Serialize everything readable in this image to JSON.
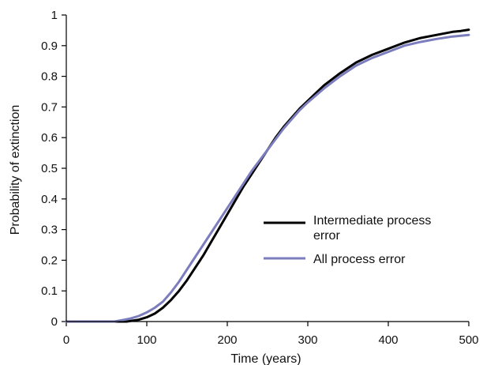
{
  "chart_data": {
    "type": "line",
    "xlabel": "Time (years)",
    "ylabel": "Probability of extinction",
    "xlim": [
      0,
      500
    ],
    "ylim": [
      0,
      1
    ],
    "xticks": [
      0,
      100,
      200,
      300,
      400,
      500
    ],
    "yticks": [
      0,
      0.1,
      0.2,
      0.3,
      0.4,
      0.5,
      0.6,
      0.7,
      0.8,
      0.9,
      1
    ],
    "ytick_labels": [
      "0",
      "0.1",
      "0.2",
      "0.3",
      "0.4",
      "0.5",
      "0.6",
      "0.7",
      "0.8",
      "0.9",
      "1"
    ],
    "grid": false,
    "legend_position": "center-right",
    "series": [
      {
        "name": "Intermediate process error",
        "color": "#000000",
        "x": [
          0,
          60,
          75,
          90,
          100,
          110,
          120,
          130,
          140,
          150,
          160,
          170,
          180,
          190,
          200,
          210,
          220,
          230,
          240,
          250,
          260,
          270,
          280,
          290,
          300,
          320,
          340,
          360,
          380,
          400,
          420,
          440,
          460,
          480,
          490,
          500
        ],
        "y": [
          0,
          0,
          0,
          0.006,
          0.014,
          0.026,
          0.045,
          0.07,
          0.1,
          0.135,
          0.175,
          0.215,
          0.26,
          0.305,
          0.35,
          0.395,
          0.44,
          0.48,
          0.52,
          0.56,
          0.6,
          0.635,
          0.665,
          0.695,
          0.72,
          0.77,
          0.81,
          0.845,
          0.87,
          0.89,
          0.91,
          0.925,
          0.935,
          0.945,
          0.948,
          0.952
        ]
      },
      {
        "name": "All process error",
        "color": "#7b7dbd",
        "x": [
          0,
          60,
          70,
          80,
          90,
          100,
          110,
          120,
          130,
          140,
          150,
          160,
          170,
          180,
          190,
          200,
          210,
          220,
          230,
          240,
          250,
          260,
          270,
          280,
          290,
          300,
          320,
          340,
          360,
          380,
          400,
          420,
          440,
          460,
          480,
          500
        ],
        "y": [
          0,
          0,
          0.005,
          0.01,
          0.018,
          0.03,
          0.045,
          0.065,
          0.095,
          0.13,
          0.17,
          0.21,
          0.25,
          0.29,
          0.33,
          0.37,
          0.41,
          0.45,
          0.49,
          0.525,
          0.56,
          0.595,
          0.63,
          0.66,
          0.69,
          0.715,
          0.76,
          0.8,
          0.835,
          0.86,
          0.88,
          0.9,
          0.912,
          0.922,
          0.93,
          0.935
        ]
      }
    ]
  }
}
